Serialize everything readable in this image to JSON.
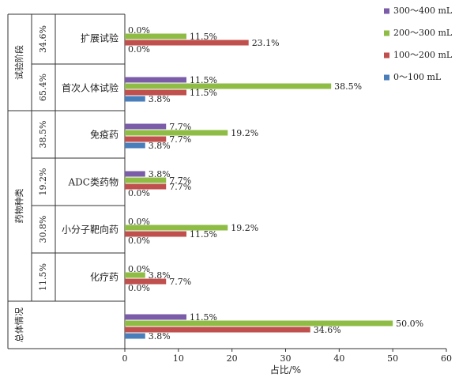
{
  "chart_data": {
    "type": "bar",
    "orientation": "horizontal",
    "xlabel": "占比/%",
    "xlim": [
      0,
      60
    ],
    "xticks": [
      0,
      10,
      20,
      30,
      40,
      50,
      60
    ],
    "legend_position": "right",
    "series": [
      {
        "name": "300～400 mL",
        "color": "#7b5ca8"
      },
      {
        "name": "200～300 mL",
        "color": "#8fbc45"
      },
      {
        "name": "100～200 mL",
        "color": "#c0504d"
      },
      {
        "name": "0～100 mL",
        "color": "#4a7ebb"
      }
    ],
    "groups": [
      {
        "label": "试验阶段",
        "rows": [
          {
            "category": "扩展试验",
            "percent": "34.6%",
            "values": [
              0.0,
              11.5,
              23.1,
              0.0
            ]
          },
          {
            "category": "首次人体试验",
            "percent": "65.4%",
            "values": [
              11.5,
              38.5,
              11.5,
              3.8
            ]
          }
        ]
      },
      {
        "label": "药物种类",
        "rows": [
          {
            "category": "免疫药",
            "percent": "38.5%",
            "values": [
              7.7,
              19.2,
              7.7,
              3.8
            ]
          },
          {
            "category": "ADC类药物",
            "percent": "19.2%",
            "values": [
              3.8,
              7.7,
              7.7,
              0.0
            ]
          },
          {
            "category": "小分子靶向药",
            "percent": "30.8%",
            "values": [
              0.0,
              19.2,
              11.5,
              0.0
            ]
          },
          {
            "category": "化疗药",
            "percent": "11.5%",
            "values": [
              0.0,
              3.8,
              7.7,
              0.0
            ]
          }
        ]
      },
      {
        "label": "总体情况",
        "rows": [
          {
            "category": "",
            "percent": "",
            "values": [
              11.5,
              50.0,
              34.6,
              3.8
            ]
          }
        ]
      }
    ]
  }
}
